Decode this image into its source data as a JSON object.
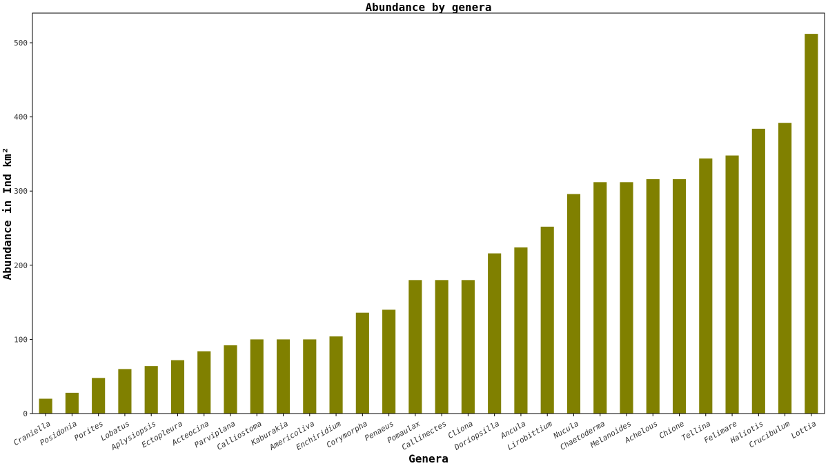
{
  "chart_data": {
    "type": "bar",
    "title": "Abundance by genera",
    "xlabel": "Genera",
    "ylabel": "Abundance in Ind km²",
    "ylim": [
      0,
      540
    ],
    "yticks": [
      0,
      100,
      200,
      300,
      400,
      500
    ],
    "grid": false,
    "bar_color": "#808000",
    "categories": [
      "Craniella",
      "Posidonia",
      "Porites",
      "Lobatus",
      "Aplysiopsis",
      "Ectopleura",
      "Acteocina",
      "Parviplana",
      "Calliostoma",
      "Kaburakia",
      "Americoliva",
      "Enchiridium",
      "Corymorpha",
      "Penaeus",
      "Pomaulax",
      "Callinectes",
      "Cliona",
      "Doriopsilla",
      "Ancula",
      "Lirobittium",
      "Nucula",
      "Chaetoderma",
      "Melanoides",
      "Achelous",
      "Chione",
      "Tellina",
      "Felimare",
      "Haliotis",
      "Crucibulum",
      "Lottia"
    ],
    "values": [
      20,
      28,
      48,
      60,
      64,
      72,
      84,
      92,
      100,
      100,
      100,
      104,
      136,
      140,
      180,
      180,
      180,
      216,
      224,
      252,
      296,
      312,
      312,
      316,
      316,
      344,
      348,
      384,
      392,
      512
    ]
  }
}
